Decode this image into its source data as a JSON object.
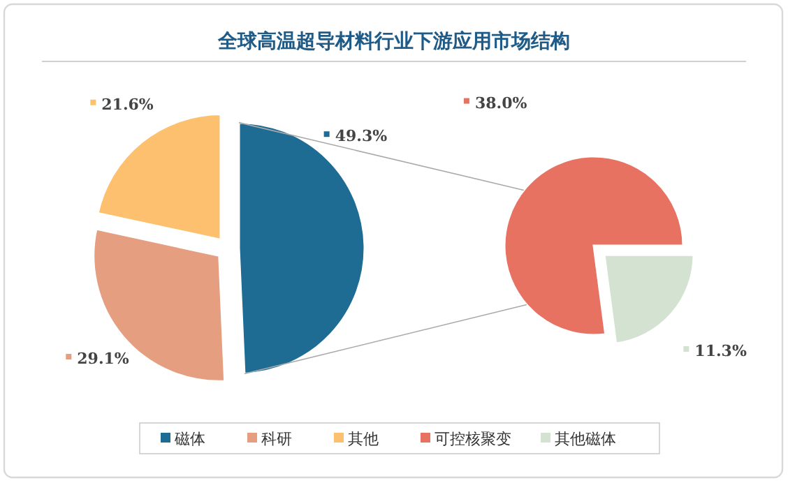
{
  "chart_data": [
    {
      "type": "pie",
      "title": "全球高温超导材料行业下游应用市场结构",
      "categories": [
        "磁体",
        "科研",
        "其他"
      ],
      "values": [
        49.3,
        29.1,
        21.6
      ],
      "colors": [
        "#1e6b94",
        "#e59e7f",
        "#fdc06f"
      ],
      "value_labels": [
        "49.3%",
        "29.1%",
        "21.6%"
      ],
      "legend": "bottom"
    },
    {
      "type": "pie",
      "categories": [
        "可控核聚变",
        "其他磁体"
      ],
      "values": [
        38.0,
        11.3
      ],
      "colors": [
        "#e87262",
        "#d3e2d1"
      ],
      "value_labels": [
        "38.0%",
        "11.3%"
      ],
      "legend": "bottom"
    }
  ]
}
